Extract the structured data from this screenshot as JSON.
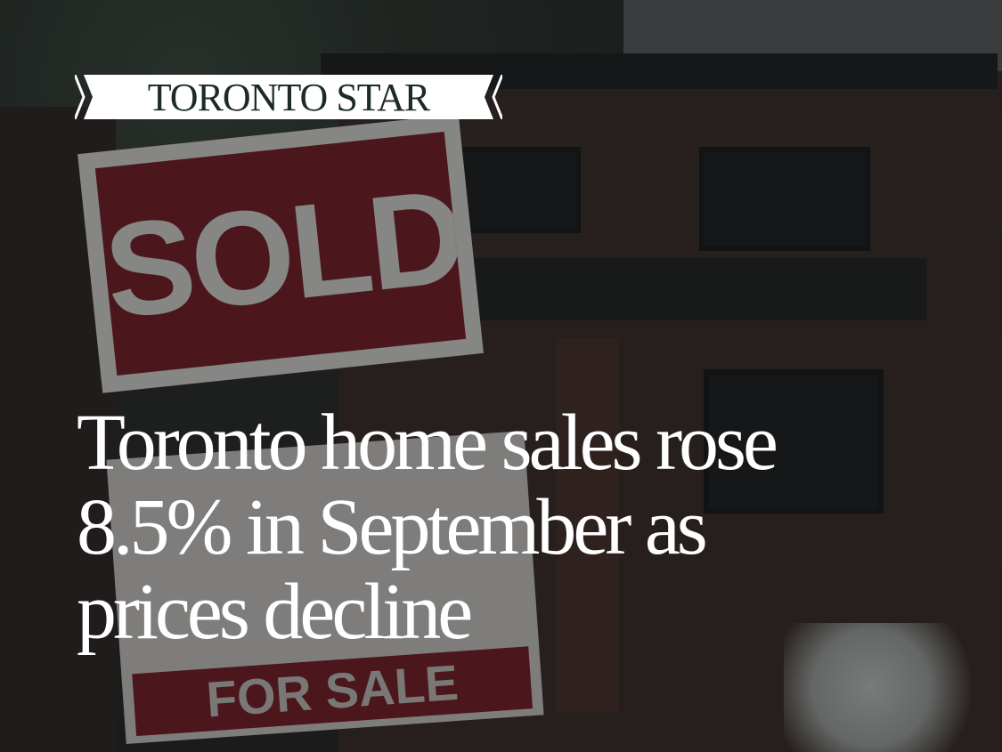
{
  "brand": {
    "name": "TORONTO STAR"
  },
  "headline": {
    "lines": [
      "Toronto home sales rose",
      "8.5% in September as",
      "prices decline"
    ]
  },
  "photo": {
    "sold_sign": "SOLD",
    "for_sale_sign": "FOR SALE"
  },
  "colors": {
    "sign_red": "#7e1c25",
    "text": "#ffffff",
    "logo_ink": "#1d2a2a"
  }
}
